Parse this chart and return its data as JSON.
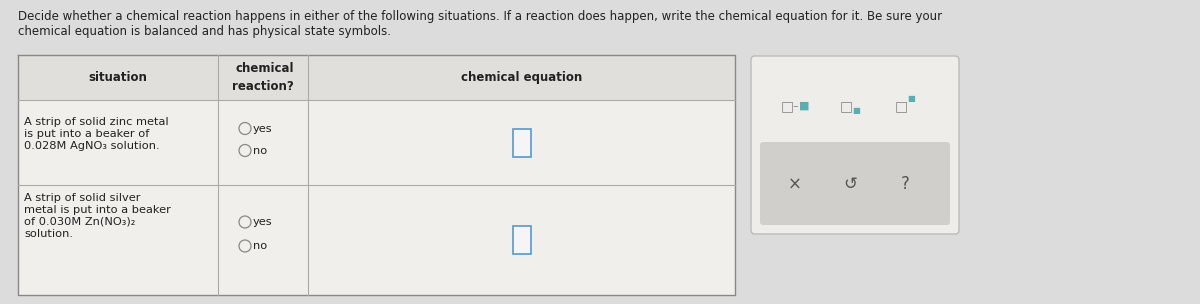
{
  "page_bg": "#dcdcdc",
  "header_text_line1": "Decide whether a chemical reaction happens in either of the following situations. If a reaction does happen, write the chemical equation for it. Be sure your",
  "header_text_line2": "chemical equation is balanced and has physical state symbols.",
  "col1_header": "situation",
  "col2_header": "chemical\nreaction?",
  "col3_header": "chemical equation",
  "row1_situation_line1": "A strip of solid zinc metal",
  "row1_situation_line2": "is put into a beaker of",
  "row1_situation_line3": "0.028M AgNO₃ solution.",
  "row2_situation_line1": "A strip of solid silver",
  "row2_situation_line2": "metal is put into a beaker",
  "row2_situation_line3": "of 0.030M Zn(NO₃)₂",
  "row2_situation_line4": "solution.",
  "radio_yes": "yes",
  "radio_no": "no",
  "table_bg": "#f0efeb",
  "header_row_bg": "#e0dfdb",
  "border_color": "#aaaaaa",
  "text_color": "#222222",
  "teal_color": "#5badb0",
  "tool_box_bg": "#eeede9",
  "tool_inner_bg": "#d0cfcb",
  "tool_border": "#bbbbbb"
}
